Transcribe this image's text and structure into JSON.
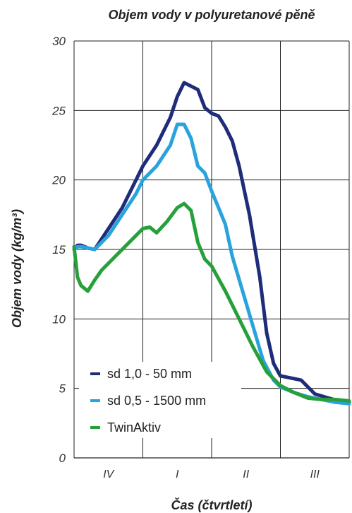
{
  "chart_data": {
    "type": "line",
    "title": "Objem vody v polyuretanové pěně",
    "xlabel": "Čas (čtvrtletí)",
    "ylabel": "Objem vody (kg/m³)",
    "categories": [
      "IV",
      "I",
      "II",
      "III"
    ],
    "xlim": [
      0,
      4
    ],
    "ylim": [
      0,
      30
    ],
    "y_ticks": [
      "0",
      "5",
      "10",
      "15",
      "20",
      "25",
      "30"
    ],
    "grid": true,
    "legend_position": "bottom-left",
    "series": [
      {
        "name": "sd 1,0 - 50 mm",
        "color": "#1f2c7a",
        "x": [
          0,
          0.05,
          0.1,
          0.2,
          0.3,
          0.5,
          0.7,
          0.9,
          1.0,
          1.2,
          1.4,
          1.5,
          1.6,
          1.8,
          1.9,
          2.0,
          2.1,
          2.2,
          2.3,
          2.4,
          2.55,
          2.7,
          2.8,
          2.9,
          3.0,
          3.1,
          3.3,
          3.5,
          3.7,
          3.85,
          4.0
        ],
        "values": [
          15.0,
          15.3,
          15.3,
          15.1,
          15.0,
          16.5,
          18.0,
          20.0,
          21.0,
          22.5,
          24.5,
          26.0,
          27.0,
          26.5,
          25.2,
          24.8,
          24.6,
          23.8,
          22.8,
          21.0,
          17.5,
          13.0,
          9.0,
          6.8,
          5.9,
          5.8,
          5.6,
          4.6,
          4.3,
          4.1,
          4.0
        ]
      },
      {
        "name": "sd 0,5 - 1500 mm",
        "color": "#29a3dd",
        "x": [
          0,
          0.05,
          0.1,
          0.2,
          0.3,
          0.5,
          0.7,
          0.9,
          1.0,
          1.2,
          1.4,
          1.5,
          1.6,
          1.7,
          1.8,
          1.9,
          2.0,
          2.1,
          2.2,
          2.3,
          2.45,
          2.6,
          2.75,
          2.9,
          3.0,
          3.2,
          3.4,
          3.6,
          3.8,
          4.0
        ],
        "values": [
          15.0,
          15.2,
          15.2,
          15.1,
          15.0,
          16.0,
          17.5,
          19.0,
          20.0,
          21.0,
          22.5,
          24.0,
          24.0,
          23.0,
          21.0,
          20.5,
          19.2,
          18.0,
          16.8,
          14.5,
          12.0,
          9.5,
          7.0,
          5.6,
          5.1,
          4.7,
          4.4,
          4.2,
          4.0,
          3.9
        ]
      },
      {
        "name": "TwinAktiv",
        "color": "#27a03c",
        "x": [
          0,
          0.05,
          0.1,
          0.2,
          0.3,
          0.4,
          0.6,
          0.8,
          1.0,
          1.1,
          1.2,
          1.35,
          1.5,
          1.6,
          1.7,
          1.8,
          1.9,
          2.0,
          2.2,
          2.4,
          2.6,
          2.8,
          3.0,
          3.2,
          3.4,
          3.6,
          3.8,
          4.0
        ],
        "values": [
          15.2,
          13.0,
          12.4,
          12.0,
          12.8,
          13.5,
          14.5,
          15.5,
          16.5,
          16.6,
          16.2,
          17.0,
          18.0,
          18.3,
          17.8,
          15.5,
          14.3,
          13.8,
          12.0,
          10.0,
          8.0,
          6.2,
          5.2,
          4.7,
          4.3,
          4.2,
          4.2,
          4.1
        ]
      }
    ]
  }
}
